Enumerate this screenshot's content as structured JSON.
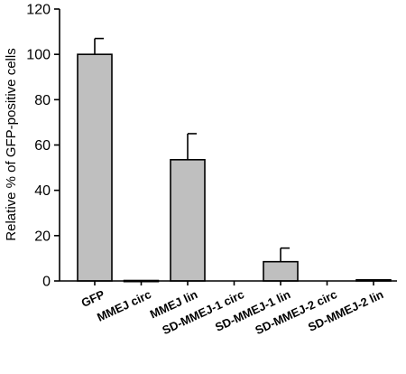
{
  "chart_data": {
    "type": "bar",
    "categories": [
      "GFP",
      "MMEJ circ",
      "MMEJ lin",
      "SD-MMEJ-1 circ",
      "SD-MMEJ-1 lin",
      "SD-MMEJ-2 circ",
      "SD-MMEJ-2 lin"
    ],
    "values": [
      100,
      0.2,
      53.5,
      0,
      8.5,
      0,
      0.5
    ],
    "errors": [
      7,
      0,
      11.5,
      0,
      6,
      0,
      0
    ],
    "ylabel": "Relative % of GFP-positive cells",
    "ylim": [
      0,
      120
    ],
    "yticks": [
      0,
      20,
      40,
      60,
      80,
      100,
      120
    ],
    "bar_color": "#bfbfbf",
    "grid": false
  }
}
